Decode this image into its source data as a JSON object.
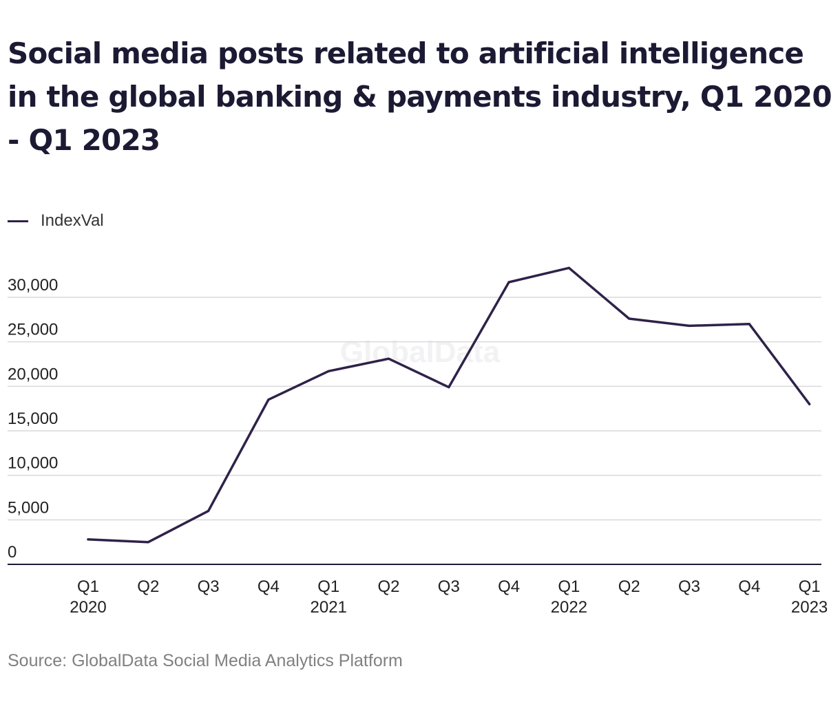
{
  "title": "Social media posts related to artificial intelligence in the global banking & payments industry, Q1 2020 - Q1 2023",
  "source": "Source: GlobalData Social Media Analytics Platform",
  "watermark": "GlobalData",
  "colors": {
    "line": "#2f2249",
    "grid": "#d9d9d9",
    "axis": "#1c1a33",
    "title": "#1c1a33",
    "source": "#808080"
  },
  "chart_data": {
    "type": "line",
    "title": "Social media posts related to artificial intelligence in the global banking & payments industry, Q1 2020 - Q1 2023",
    "xlabel": "",
    "ylabel": "",
    "grid": true,
    "legend_position": "top-left",
    "ylim": [
      0,
      30000
    ],
    "yticks": [
      0,
      5000,
      10000,
      15000,
      20000,
      25000,
      30000
    ],
    "ytick_labels": [
      "0",
      "5,000",
      "10,000",
      "15,000",
      "20,000",
      "25,000",
      "30,000"
    ],
    "categories": [
      "Q1 2020",
      "Q2",
      "Q3",
      "Q4",
      "Q1 2021",
      "Q2",
      "Q3",
      "Q4",
      "Q1 2022",
      "Q2",
      "Q3",
      "Q4",
      "Q1 2023"
    ],
    "tick_labels": [
      [
        "Q1",
        "2020"
      ],
      [
        "Q2",
        ""
      ],
      [
        "Q3",
        ""
      ],
      [
        "Q4",
        ""
      ],
      [
        "Q1",
        "2021"
      ],
      [
        "Q2",
        ""
      ],
      [
        "Q3",
        ""
      ],
      [
        "Q4",
        ""
      ],
      [
        "Q1",
        "2022"
      ],
      [
        "Q2",
        ""
      ],
      [
        "Q3",
        ""
      ],
      [
        "Q4",
        ""
      ],
      [
        "Q1",
        "2023"
      ]
    ],
    "series": [
      {
        "name": "IndexVal",
        "values": [
          2800,
          2500,
          6000,
          18500,
          21700,
          23100,
          19900,
          31700,
          33300,
          27600,
          26800,
          27000,
          18000
        ]
      }
    ]
  }
}
